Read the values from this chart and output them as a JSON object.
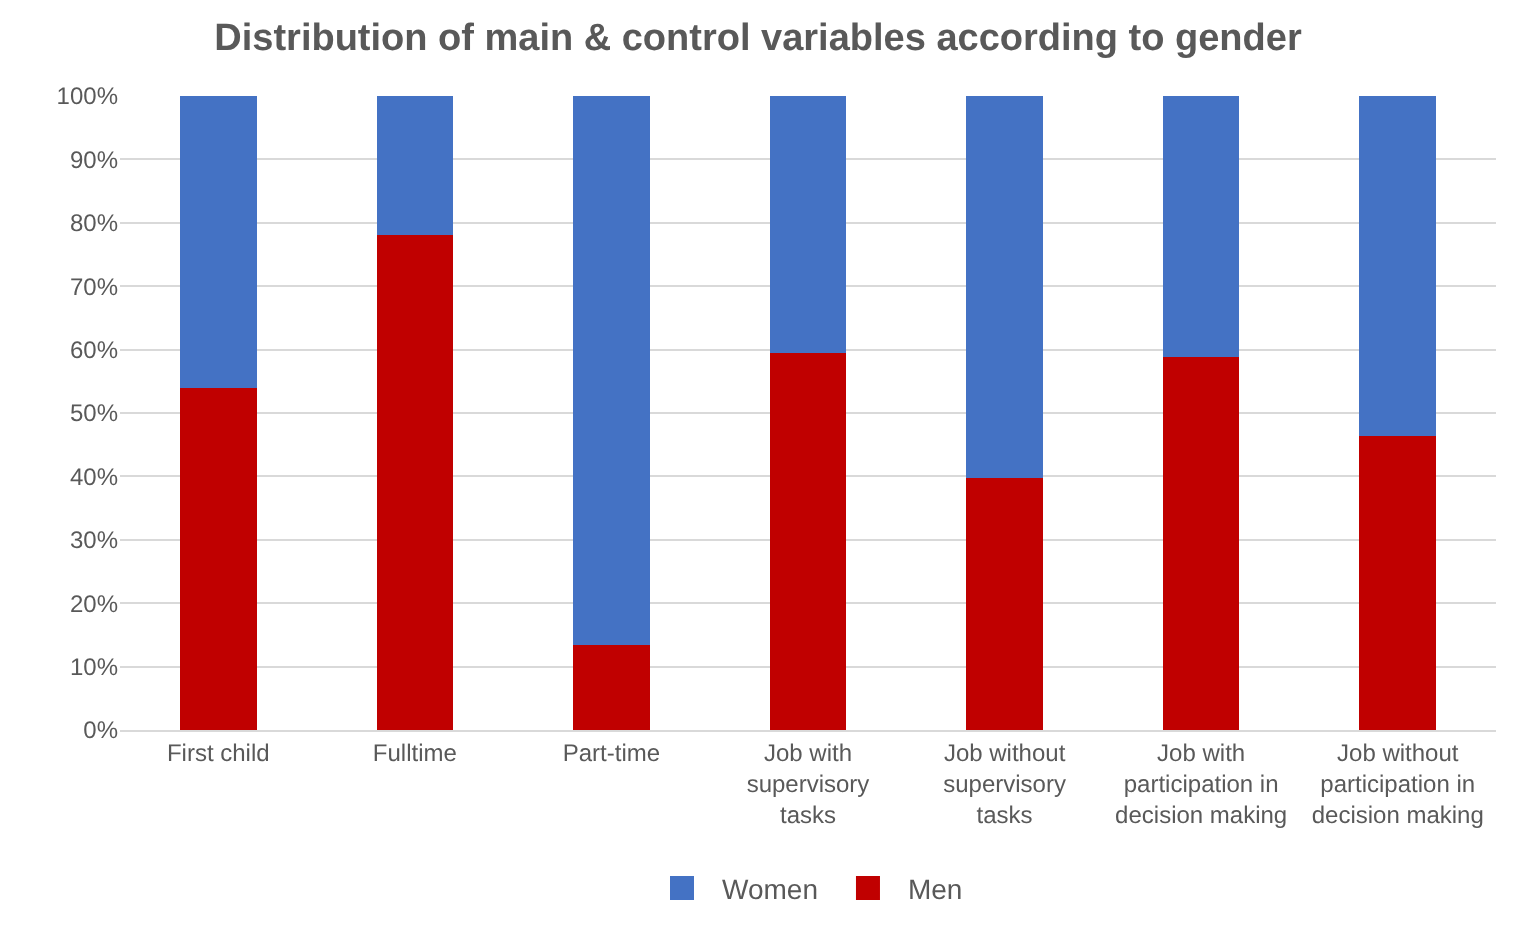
{
  "chart_data": {
    "type": "bar",
    "stacked": true,
    "title": "Distribution of main & control variables according to gender",
    "categories": [
      "First child",
      "Fulltime",
      "Part-time",
      "Job with\nsupervisory\ntasks",
      "Job without\nsupervisory\ntasks",
      "Job with\nparticipation in\ndecision making",
      "Job without\nparticipation in\ndecision making"
    ],
    "series": [
      {
        "name": "Men",
        "color": "#c00000",
        "values": [
          54,
          78,
          13.4,
          59.4,
          39.8,
          58.8,
          46.4
        ]
      },
      {
        "name": "Women",
        "color": "#4472c4",
        "values": [
          46,
          22,
          86.6,
          40.6,
          60.2,
          41.2,
          53.6
        ]
      }
    ],
    "ylim": [
      0,
      100
    ],
    "yticks": [
      {
        "value": 0,
        "label": "0%"
      },
      {
        "value": 10,
        "label": "10%"
      },
      {
        "value": 20,
        "label": "20%"
      },
      {
        "value": 30,
        "label": "30%"
      },
      {
        "value": 40,
        "label": "40%"
      },
      {
        "value": 50,
        "label": "50%"
      },
      {
        "value": 60,
        "label": "60%"
      },
      {
        "value": 70,
        "label": "70%"
      },
      {
        "value": 80,
        "label": "80%"
      },
      {
        "value": 90,
        "label": "90%"
      },
      {
        "value": 100,
        "label": "100%"
      }
    ],
    "grid": "y",
    "legend": "bottom"
  }
}
